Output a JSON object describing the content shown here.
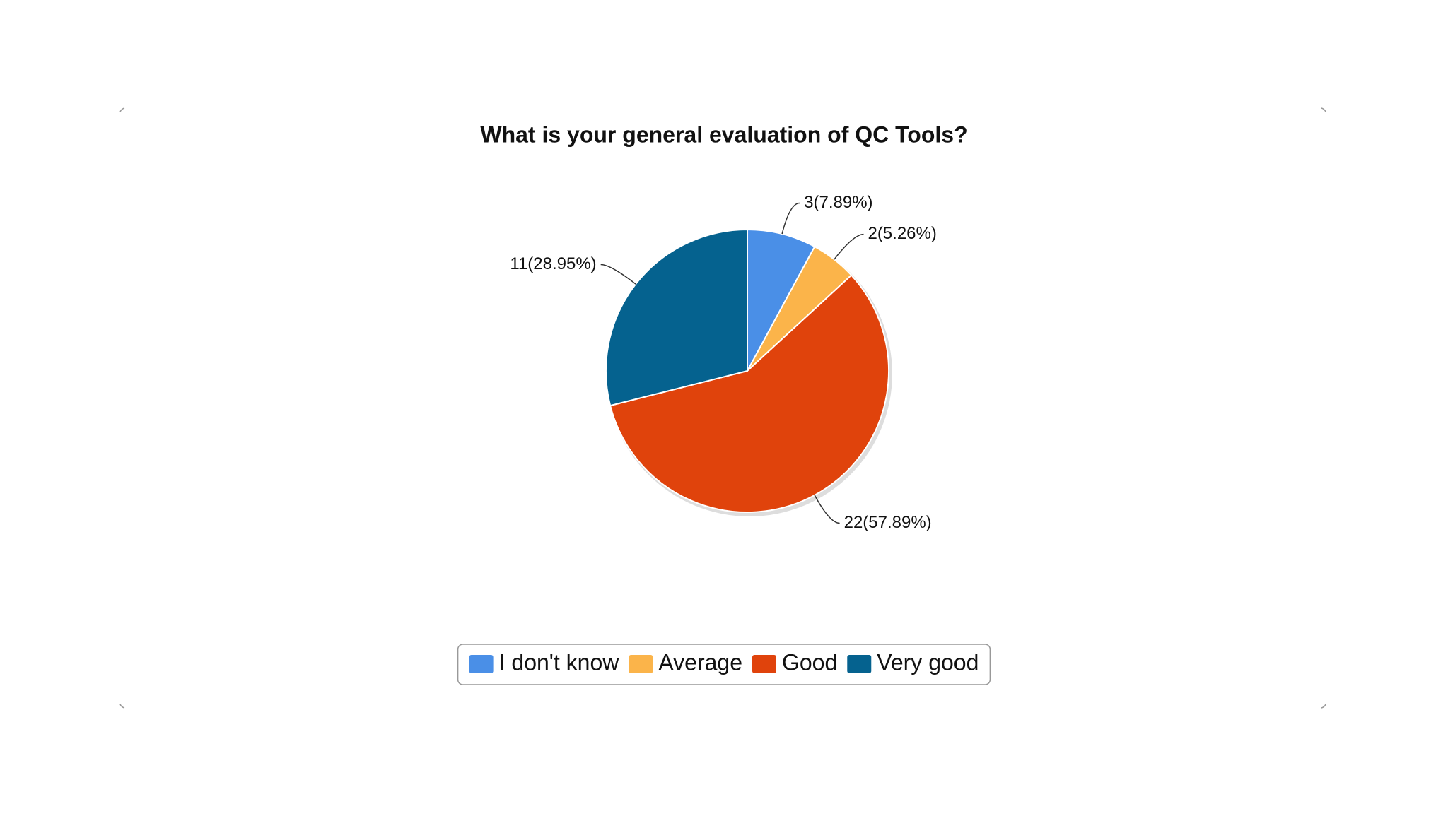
{
  "chart_data": {
    "type": "pie",
    "title": "What is your general evaluation of QC Tools?",
    "categories": [
      "I don't know",
      "Average",
      "Good",
      "Very good"
    ],
    "values": [
      3,
      2,
      22,
      11
    ],
    "value_labels": [
      "3(7.89%)",
      "2(5.26%)",
      "22(57.89%)",
      "11(28.95%)"
    ],
    "colors": [
      "#4a8fe7",
      "#fbb44a",
      "#e0430c",
      "#05628f"
    ],
    "legend": "bottom"
  }
}
